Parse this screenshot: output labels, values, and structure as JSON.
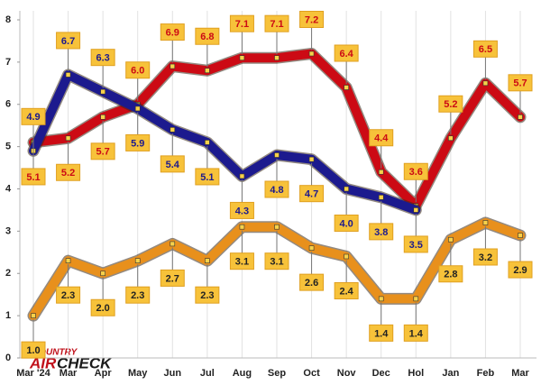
{
  "chart_data": {
    "type": "line",
    "categories": [
      "Mar '24",
      "Mar",
      "Apr",
      "May",
      "Jun",
      "Jul",
      "Aug",
      "Sep",
      "Oct",
      "Nov",
      "Dec",
      "Hol",
      "Jan",
      "Feb",
      "Mar"
    ],
    "series": [
      {
        "color": "#e8901c",
        "values": [
          1.0,
          2.3,
          2.0,
          2.3,
          2.7,
          2.3,
          3.1,
          3.1,
          2.6,
          2.4,
          1.4,
          1.4,
          2.8,
          3.2,
          2.9
        ],
        "value_labels": [
          "1.0",
          "2.3",
          "2.0",
          "2.3",
          "2.7",
          "2.3",
          "3.1",
          "3.1",
          "2.6",
          "2.4",
          "1.4",
          "1.4",
          "2.8",
          "3.2",
          "2.9"
        ]
      },
      {
        "color": "#cc0a14",
        "values": [
          5.1,
          5.2,
          5.7,
          6.0,
          6.9,
          6.8,
          7.1,
          7.1,
          7.2,
          6.4,
          4.4,
          3.6,
          5.2,
          6.5,
          5.7
        ],
        "value_labels": [
          "5.1",
          "5.2",
          "5.7",
          "6.0",
          "6.9",
          "6.8",
          "7.1",
          "7.1",
          "7.2",
          "6.4",
          "4.4",
          "3.6",
          "5.2",
          "6.5",
          "5.7"
        ]
      },
      {
        "color": "#1c1a8e",
        "values": [
          4.9,
          6.7,
          6.3,
          5.9,
          5.4,
          5.1,
          4.3,
          4.8,
          4.7,
          4.0,
          3.8,
          3.5,
          null,
          null,
          null
        ],
        "value_labels": [
          "4.9",
          "6.7",
          "6.3",
          "5.9",
          "5.4",
          "5.1",
          "4.3",
          "4.8",
          "4.7",
          "4.0",
          "3.8",
          "3.5",
          null,
          null,
          null
        ]
      }
    ],
    "ylim": [
      0,
      8
    ],
    "yticks": [
      0,
      1,
      2,
      3,
      4,
      5,
      6,
      7,
      8
    ],
    "grid": "vertical",
    "logo": [
      "COUNTRY",
      "AIR",
      "CHECK"
    ]
  }
}
